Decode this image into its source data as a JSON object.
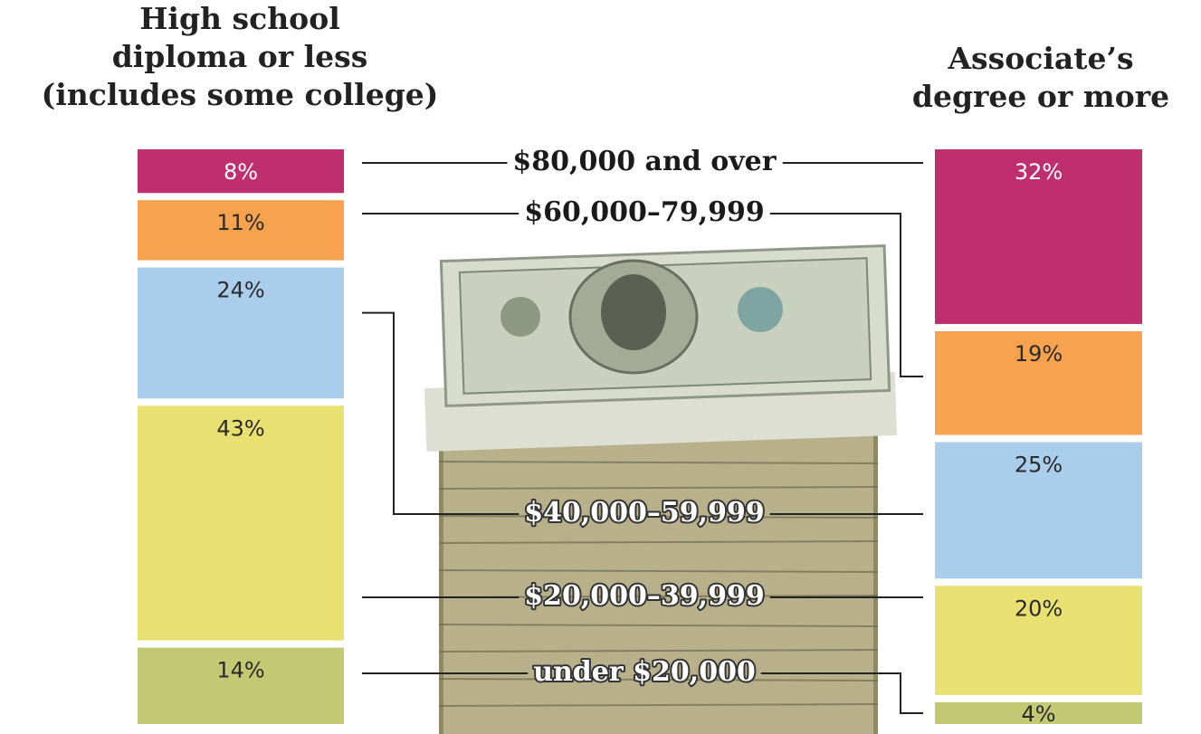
{
  "chart_data": {
    "type": "stacked_bar",
    "categories": [
      "under $20,000",
      "$20,000–39,999",
      "$40,000–59,999",
      "$60,000–79,999",
      "$80,000 and over"
    ],
    "colors": [
      "#c3c872",
      "#e9e072",
      "#a9cdeb",
      "#f6a24f",
      "#bf2f6f"
    ],
    "ylim": [
      0,
      100
    ],
    "series": [
      {
        "name": "High school\ndiploma or less\n(includes some college)",
        "values": [
          14,
          43,
          24,
          11,
          8
        ],
        "value_labels": [
          "14%",
          "43%",
          "24%",
          "11%",
          "8%"
        ]
      },
      {
        "name": "Associate’s\ndegree or more",
        "values": [
          4,
          20,
          25,
          19,
          32
        ],
        "value_labels": [
          "4%",
          "20%",
          "25%",
          "19%",
          "32%"
        ]
      }
    ]
  }
}
